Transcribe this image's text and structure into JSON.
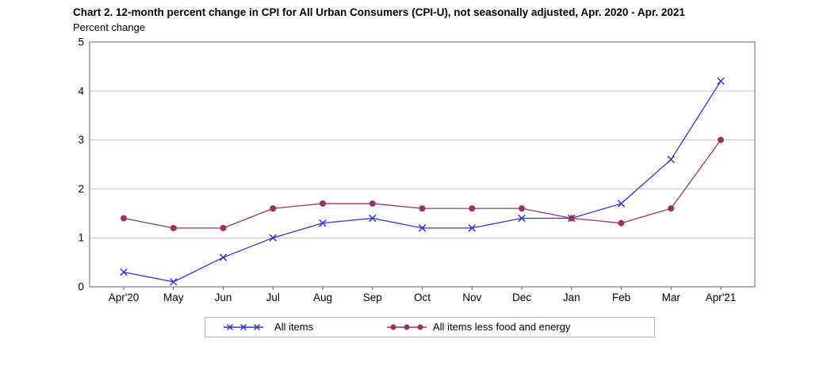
{
  "chart_data": {
    "type": "line",
    "title": "Chart 2. 12-month percent change in CPI for All Urban Consumers (CPI-U), not seasonally adjusted, Apr. 2020 - Apr. 2021",
    "ylabel": "Percent change",
    "xlabel": "",
    "categories": [
      "Apr'20",
      "May",
      "Jun",
      "Jul",
      "Aug",
      "Sep",
      "Oct",
      "Nov",
      "Dec",
      "Jan",
      "Feb",
      "Mar",
      "Apr'21"
    ],
    "series": [
      {
        "name": "All items",
        "marker": "x",
        "color": "#3333cc",
        "values": [
          0.3,
          0.1,
          0.6,
          1.0,
          1.3,
          1.4,
          1.2,
          1.2,
          1.4,
          1.4,
          1.7,
          2.6,
          4.2
        ]
      },
      {
        "name": "All items less food and energy",
        "marker": "circle",
        "color": "#993366",
        "values": [
          1.4,
          1.2,
          1.2,
          1.6,
          1.7,
          1.7,
          1.6,
          1.6,
          1.6,
          1.4,
          1.3,
          1.6,
          3.0
        ]
      }
    ],
    "ylim": [
      0,
      5
    ],
    "yticks": [
      0,
      1,
      2,
      3,
      4,
      5
    ],
    "grid": "horizontal",
    "legend_position": "bottom",
    "colors": {
      "grid": "#c6c6c6",
      "frame": "#7d7d7d",
      "tick": "#555555",
      "text": "#000000",
      "background": "#ffffff"
    }
  }
}
